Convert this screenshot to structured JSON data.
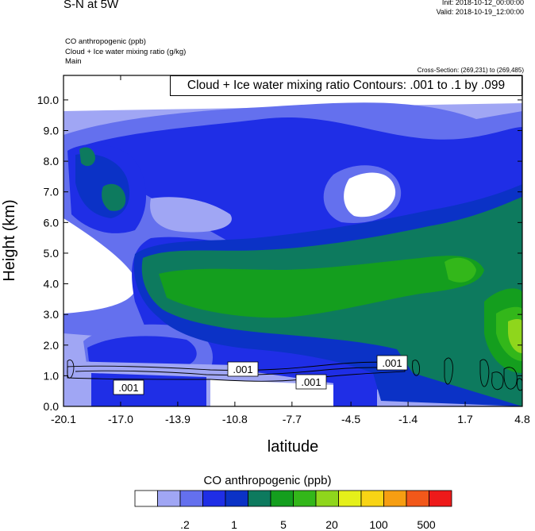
{
  "header": {
    "title": "S-N at 5W",
    "init": "Init: 2018-10-12_00:00:00",
    "valid": "Valid: 2018-10-19_12:00:00",
    "variables": [
      "CO anthropogenic   (ppb)",
      "Cloud + Ice water mixing ratio   (g/kg)",
      "Main"
    ],
    "cross_section": "Cross-Section: (269,231) to (269,485)",
    "contour_info": "Cloud + Ice water mixing ratio Contours: .001 to .1 by .099"
  },
  "chart_data": {
    "type": "heatmap",
    "xlabel": "latitude",
    "ylabel": "Height (km)",
    "x_ticks": [
      "-20.1",
      "-17.0",
      "-13.9",
      "-10.8",
      "-7.7",
      "-4.5",
      "-1.4",
      "1.7",
      "4.8"
    ],
    "y_ticks": [
      "0.0",
      "1.0",
      "2.0",
      "3.0",
      "4.0",
      "5.0",
      "6.0",
      "7.0",
      "8.0",
      "9.0",
      "10.0"
    ],
    "xlim": [
      -20.1,
      4.8
    ],
    "ylim": [
      0.0,
      10.8
    ],
    "colorbar": {
      "title": "CO anthropogenic  (ppb)",
      "colors": [
        "#ffffff",
        "#a0a6f4",
        "#6470ee",
        "#1f2ee6",
        "#0b32c6",
        "#0d7a5e",
        "#149e1e",
        "#33b71a",
        "#8fd61c",
        "#e5f01a",
        "#f8d415",
        "#f69e12",
        "#f2581a",
        "#ee1a1a"
      ],
      "labels": [
        ".2",
        "1",
        "5",
        "20",
        "100",
        "500"
      ]
    },
    "contour_labels": [
      ".001",
      ".001",
      ".001",
      ".001"
    ],
    "contour_levels": [
      0.001,
      0.1
    ]
  }
}
